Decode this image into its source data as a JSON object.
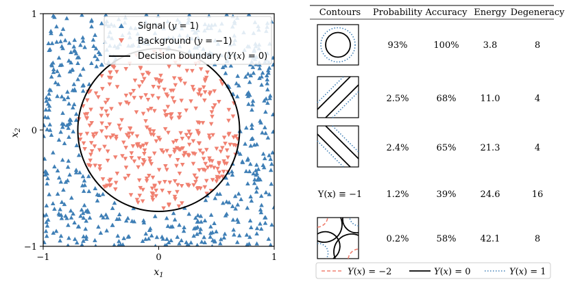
{
  "chart_data": [
    {
      "type": "scatter",
      "xlabel": "x1",
      "ylabel": "x2",
      "xlim": [
        -1,
        1
      ],
      "ylim": [
        -1,
        1
      ],
      "xticks": [
        "−1",
        "0",
        "1"
      ],
      "yticks": [
        "−1",
        "0",
        "1"
      ],
      "grid": false,
      "legend_position": "top-right",
      "legend": [
        "Signal (y = 1)",
        "Background (y = −1)",
        "Decision boundary (Y(x) = 0)"
      ],
      "boundary": {
        "shape": "circle",
        "center": [
          0,
          0
        ],
        "radius": 0.7
      },
      "series": [
        {
          "name": "Signal (y = 1)",
          "region": "outside circle",
          "marker": "triangle-up",
          "color": "#3f7fb6",
          "count_approx": 470
        },
        {
          "name": "Background (y = −1)",
          "region": "inside circle",
          "marker": "triangle-down",
          "color": "#f08070",
          "count_approx": 360
        }
      ]
    },
    {
      "type": "table",
      "columns": [
        "Contours",
        "Probability",
        "Accuracy",
        "Energy",
        "Degeneracy"
      ],
      "rows": [
        {
          "contour": "circle",
          "probability": "93%",
          "accuracy": "100%",
          "energy": "3.8",
          "degeneracy": "8"
        },
        {
          "contour": "diagonal-up",
          "probability": "2.5%",
          "accuracy": "68%",
          "energy": "11.0",
          "degeneracy": "4"
        },
        {
          "contour": "diagonal-down",
          "probability": "2.4%",
          "accuracy": "65%",
          "energy": "21.3",
          "degeneracy": "4"
        },
        {
          "contour": "Y(x) ≡ −1",
          "probability": "1.2%",
          "accuracy": "39%",
          "energy": "24.6",
          "degeneracy": "16"
        },
        {
          "contour": "corners",
          "probability": "0.2%",
          "accuracy": "58%",
          "energy": "42.1",
          "degeneracy": "8"
        }
      ],
      "legend": [
        "Y(x) = −2",
        "Y(x) = 0",
        "Y(x) = 1"
      ]
    }
  ],
  "colors": {
    "signal": "#3f7fb6",
    "background": "#f08070",
    "boundary": "#000000",
    "minus2": "#f08070",
    "plus1": "#3f7fb6"
  }
}
